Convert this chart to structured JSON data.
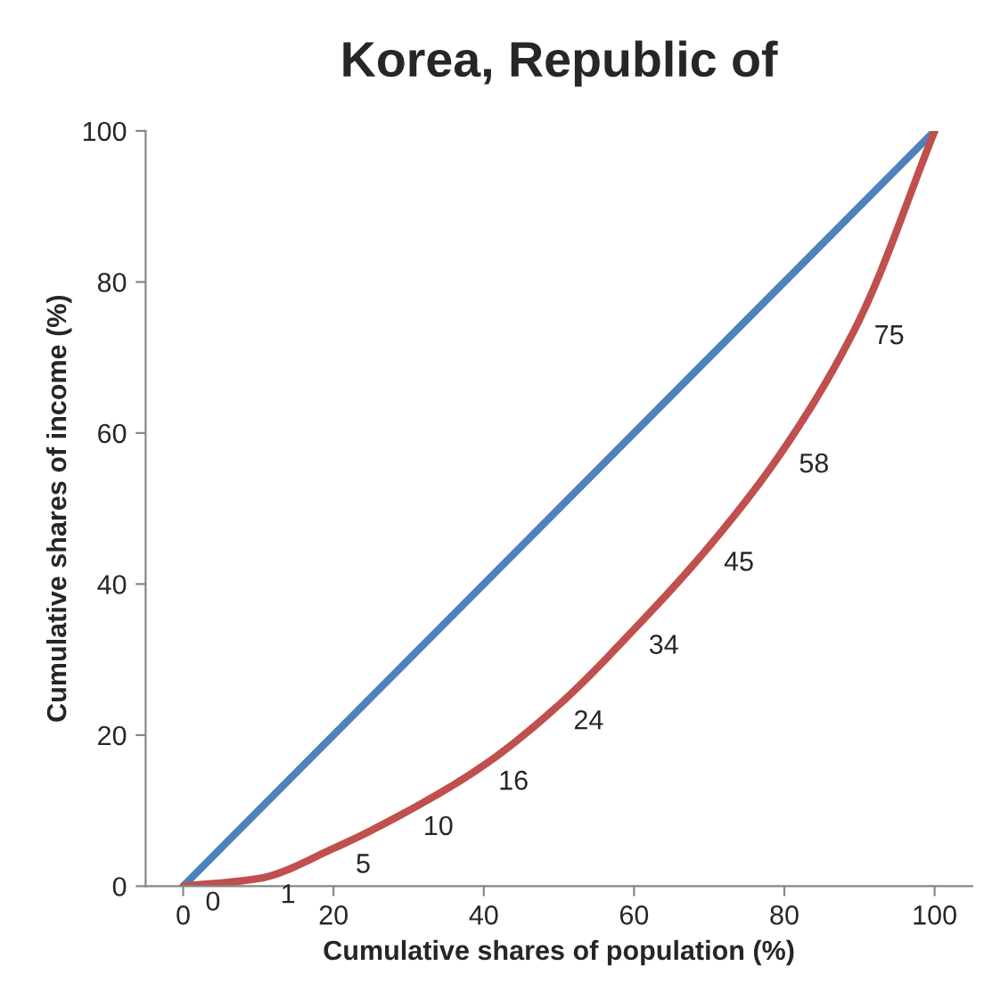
{
  "chart_data": {
    "type": "line",
    "title": "Korea, Republic of",
    "xlabel": "Cumulative shares of population (%)",
    "ylabel": "Cumulative shares of income (%)",
    "series": [
      {
        "color": "#4f81bd",
        "x": [
          0,
          100
        ],
        "values": [
          0,
          100
        ]
      },
      {
        "color": "#c0504d",
        "x": [
          0,
          10,
          20,
          30,
          40,
          50,
          60,
          70,
          80,
          90,
          100
        ],
        "values": [
          0,
          1,
          5,
          10,
          16,
          24,
          34,
          45,
          58,
          75,
          100
        ],
        "value_labels": [
          "0",
          "1",
          "5",
          "10",
          "16",
          "24",
          "34",
          "45",
          "58",
          "75",
          null
        ]
      }
    ],
    "xlim": [
      -5,
      105
    ],
    "xticks": [
      0,
      20,
      40,
      60,
      80,
      100
    ],
    "ylim": [
      0,
      100
    ],
    "yticks": [
      0,
      20,
      40,
      60,
      80,
      100
    ],
    "grid": false,
    "marker": "none",
    "line_style": "solid"
  }
}
